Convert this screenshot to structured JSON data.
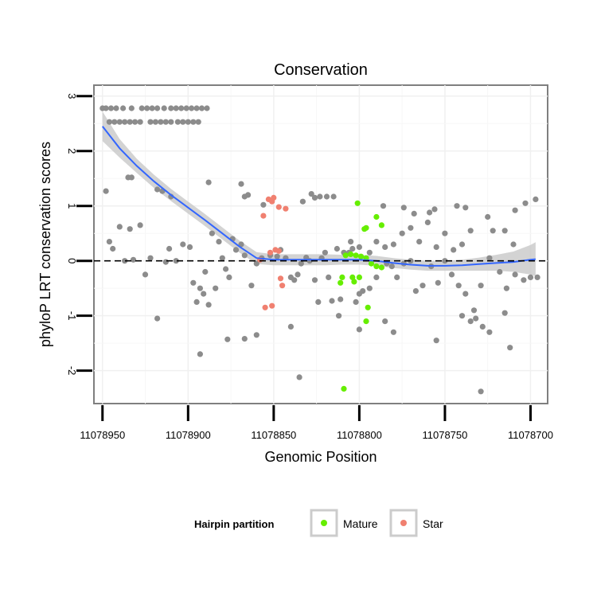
{
  "chart_data": {
    "type": "scatter",
    "title": "Conservation",
    "xlabel": "Genomic Position",
    "ylabel": "phyloP LRT conservation scores",
    "x_reversed": true,
    "xlim": [
      11078955,
      11078690
    ],
    "ylim": [
      -2.6,
      3.2
    ],
    "x_ticks": [
      11078950,
      11078900,
      11078850,
      11078800,
      11078750,
      11078700
    ],
    "x_tick_labels": [
      "11078950",
      "11078900",
      "11078850",
      "11078800",
      "11078750",
      "11078700"
    ],
    "y_ticks": [
      -2,
      -1,
      0,
      1,
      2,
      3
    ],
    "y_tick_labels": [
      "-2",
      "-1",
      "0",
      "1",
      "2",
      "3"
    ],
    "reference_line": {
      "y": 0,
      "style": "dashed"
    },
    "legend": {
      "title": "Hairpin partition",
      "position": "bottom",
      "entries": [
        {
          "label": "Mature",
          "color": "#66ee00"
        },
        {
          "label": "Star",
          "color": "#f08070"
        }
      ]
    },
    "colors": {
      "other": "#8c8c8c",
      "mature": "#66ee00",
      "star": "#f08070",
      "smooth_line": "#3366ff",
      "ribbon": "#c8c8c8"
    },
    "series": [
      {
        "name": "Other",
        "points": [
          [
            11078950,
            2.78
          ],
          [
            11078948,
            2.78
          ],
          [
            11078945,
            2.78
          ],
          [
            11078942,
            2.78
          ],
          [
            11078938,
            2.78
          ],
          [
            11078933,
            2.78
          ],
          [
            11078927,
            2.78
          ],
          [
            11078924,
            2.78
          ],
          [
            11078921,
            2.78
          ],
          [
            11078918,
            2.78
          ],
          [
            11078914,
            2.78
          ],
          [
            11078910,
            2.78
          ],
          [
            11078907,
            2.78
          ],
          [
            11078904,
            2.78
          ],
          [
            11078901,
            2.78
          ],
          [
            11078898,
            2.78
          ],
          [
            11078895,
            2.78
          ],
          [
            11078892,
            2.78
          ],
          [
            11078889,
            2.78
          ],
          [
            11078946,
            2.53
          ],
          [
            11078943,
            2.53
          ],
          [
            11078940,
            2.53
          ],
          [
            11078937,
            2.53
          ],
          [
            11078934,
            2.53
          ],
          [
            11078931,
            2.53
          ],
          [
            11078928,
            2.53
          ],
          [
            11078922,
            2.53
          ],
          [
            11078919,
            2.53
          ],
          [
            11078916,
            2.53
          ],
          [
            11078913,
            2.53
          ],
          [
            11078910,
            2.53
          ],
          [
            11078906,
            2.53
          ],
          [
            11078903,
            2.53
          ],
          [
            11078900,
            2.53
          ],
          [
            11078897,
            2.53
          ],
          [
            11078894,
            2.53
          ],
          [
            11078948,
            1.27
          ],
          [
            11078935,
            1.52
          ],
          [
            11078933,
            1.52
          ],
          [
            11078918,
            1.3
          ],
          [
            11078915,
            1.27
          ],
          [
            11078910,
            1.17
          ],
          [
            11078888,
            1.43
          ],
          [
            11078869,
            1.4
          ],
          [
            11078867,
            1.17
          ],
          [
            11078865,
            1.2
          ],
          [
            11078856,
            1.02
          ],
          [
            11078833,
            1.08
          ],
          [
            11078828,
            1.22
          ],
          [
            11078826,
            1.15
          ],
          [
            11078823,
            1.17
          ],
          [
            11078819,
            1.17
          ],
          [
            11078815,
            1.17
          ],
          [
            11078786,
            1.0
          ],
          [
            11078774,
            0.97
          ],
          [
            11078768,
            0.86
          ],
          [
            11078759,
            0.88
          ],
          [
            11078756,
            0.94
          ],
          [
            11078743,
            1.0
          ],
          [
            11078738,
            0.97
          ],
          [
            11078725,
            0.8
          ],
          [
            11078709,
            0.92
          ],
          [
            11078703,
            1.05
          ],
          [
            11078697,
            1.12
          ],
          [
            11078946,
            0.35
          ],
          [
            11078944,
            0.22
          ],
          [
            11078940,
            0.62
          ],
          [
            11078937,
            0.0
          ],
          [
            11078934,
            0.58
          ],
          [
            11078932,
            0.02
          ],
          [
            11078928,
            0.65
          ],
          [
            11078925,
            -0.25
          ],
          [
            11078922,
            0.05
          ],
          [
            11078918,
            -1.05
          ],
          [
            11078913,
            -0.02
          ],
          [
            11078911,
            0.22
          ],
          [
            11078907,
            0.0
          ],
          [
            11078903,
            0.3
          ],
          [
            11078899,
            0.25
          ],
          [
            11078897,
            -0.4
          ],
          [
            11078895,
            -0.75
          ],
          [
            11078893,
            -0.5
          ],
          [
            11078891,
            -0.6
          ],
          [
            11078890,
            -0.2
          ],
          [
            11078888,
            -0.8
          ],
          [
            11078886,
            0.5
          ],
          [
            11078884,
            -0.5
          ],
          [
            11078882,
            0.35
          ],
          [
            11078880,
            0.05
          ],
          [
            11078878,
            -0.15
          ],
          [
            11078876,
            -0.3
          ],
          [
            11078874,
            0.4
          ],
          [
            11078872,
            0.2
          ],
          [
            11078869,
            0.3
          ],
          [
            11078867,
            0.1
          ],
          [
            11078863,
            -0.45
          ],
          [
            11078860,
            -0.05
          ],
          [
            11078857,
            0.05
          ],
          [
            11078852,
            0.1
          ],
          [
            11078848,
            0.08
          ],
          [
            11078846,
            0.2
          ],
          [
            11078843,
            0.05
          ],
          [
            11078840,
            -0.3
          ],
          [
            11078838,
            -0.35
          ],
          [
            11078836,
            -0.25
          ],
          [
            11078834,
            -0.05
          ],
          [
            11078831,
            0.06
          ],
          [
            11078829,
            0.0
          ],
          [
            11078826,
            -0.35
          ],
          [
            11078824,
            -0.75
          ],
          [
            11078822,
            0.05
          ],
          [
            11078820,
            0.15
          ],
          [
            11078818,
            -0.3
          ],
          [
            11078816,
            -0.73
          ],
          [
            11078813,
            0.22
          ],
          [
            11078811,
            -0.7
          ],
          [
            11078809,
            0.15
          ],
          [
            11078806,
            0.15
          ],
          [
            11078804,
            0.22
          ],
          [
            11078802,
            -0.75
          ],
          [
            11078800,
            -0.6
          ],
          [
            11078798,
            -0.55
          ],
          [
            11078794,
            -0.5
          ],
          [
            11078790,
            -0.3
          ],
          [
            11078784,
            -0.05
          ],
          [
            11078781,
            -0.1
          ],
          [
            11078778,
            -0.3
          ],
          [
            11078774,
            -0.05
          ],
          [
            11078770,
            0.0
          ],
          [
            11078767,
            -0.55
          ],
          [
            11078763,
            -0.45
          ],
          [
            11078758,
            -0.1
          ],
          [
            11078754,
            -0.4
          ],
          [
            11078750,
            0.0
          ],
          [
            11078746,
            -0.25
          ],
          [
            11078742,
            -0.45
          ],
          [
            11078738,
            -0.6
          ],
          [
            11078733,
            -0.9
          ],
          [
            11078729,
            -0.45
          ],
          [
            11078724,
            0.05
          ],
          [
            11078718,
            -0.2
          ],
          [
            11078714,
            -0.5
          ],
          [
            11078709,
            -0.25
          ],
          [
            11078704,
            -0.35
          ],
          [
            11078700,
            -0.3
          ],
          [
            11078696,
            -0.3
          ],
          [
            11078710,
            0.3
          ],
          [
            11078715,
            0.55
          ],
          [
            11078722,
            0.55
          ],
          [
            11078735,
            0.55
          ],
          [
            11078740,
            0.3
          ],
          [
            11078745,
            0.2
          ],
          [
            11078750,
            0.5
          ],
          [
            11078755,
            0.25
          ],
          [
            11078760,
            0.7
          ],
          [
            11078765,
            0.35
          ],
          [
            11078770,
            0.6
          ],
          [
            11078775,
            0.5
          ],
          [
            11078780,
            0.3
          ],
          [
            11078785,
            0.25
          ],
          [
            11078790,
            0.35
          ],
          [
            11078794,
            0.15
          ],
          [
            11078800,
            0.25
          ],
          [
            11078805,
            0.35
          ],
          [
            11078893,
            -1.7
          ],
          [
            11078877,
            -1.43
          ],
          [
            11078867,
            -1.42
          ],
          [
            11078860,
            -1.35
          ],
          [
            11078840,
            -1.2
          ],
          [
            11078835,
            -2.12
          ],
          [
            11078812,
            -1.0
          ],
          [
            11078800,
            -1.25
          ],
          [
            11078785,
            -1.1
          ],
          [
            11078780,
            -1.3
          ],
          [
            11078755,
            -1.45
          ],
          [
            11078740,
            -1.0
          ],
          [
            11078735,
            -1.1
          ],
          [
            11078732,
            -1.05
          ],
          [
            11078728,
            -1.2
          ],
          [
            11078724,
            -1.3
          ],
          [
            11078715,
            -0.95
          ],
          [
            11078712,
            -1.58
          ],
          [
            11078729,
            -2.38
          ]
        ]
      },
      {
        "name": "Mature",
        "points": [
          [
            11078801,
            1.05
          ],
          [
            11078790,
            0.8
          ],
          [
            11078787,
            0.65
          ],
          [
            11078796,
            0.6
          ],
          [
            11078797,
            0.58
          ],
          [
            11078808,
            0.1
          ],
          [
            11078805,
            0.12
          ],
          [
            11078802,
            0.1
          ],
          [
            11078799,
            0.08
          ],
          [
            11078796,
            0.05
          ],
          [
            11078793,
            -0.05
          ],
          [
            11078790,
            -0.1
          ],
          [
            11078787,
            -0.12
          ],
          [
            11078810,
            -0.3
          ],
          [
            11078804,
            -0.3
          ],
          [
            11078803,
            -0.38
          ],
          [
            11078800,
            -0.3
          ],
          [
            11078795,
            -0.85
          ],
          [
            11078796,
            -1.1
          ],
          [
            11078809,
            -2.33
          ],
          [
            11078811,
            -0.4
          ]
        ]
      },
      {
        "name": "Star",
        "points": [
          [
            11078853,
            1.12
          ],
          [
            11078851,
            1.08
          ],
          [
            11078850,
            1.15
          ],
          [
            11078847,
            0.98
          ],
          [
            11078843,
            0.95
          ],
          [
            11078856,
            0.82
          ],
          [
            11078858,
            0.02
          ],
          [
            11078852,
            0.15
          ],
          [
            11078849,
            0.2
          ],
          [
            11078847,
            0.18
          ],
          [
            11078846,
            -0.32
          ],
          [
            11078845,
            -0.45
          ],
          [
            11078855,
            -0.85
          ],
          [
            11078851,
            -0.82
          ]
        ]
      }
    ],
    "smooth_fit": {
      "x": [
        11078950,
        11078940,
        11078930,
        11078920,
        11078910,
        11078900,
        11078890,
        11078880,
        11078870,
        11078860,
        11078850,
        11078840,
        11078830,
        11078820,
        11078810,
        11078800,
        11078790,
        11078780,
        11078770,
        11078760,
        11078750,
        11078740,
        11078730,
        11078720,
        11078710,
        11078700,
        11078697
      ],
      "y": [
        2.45,
        2.05,
        1.73,
        1.45,
        1.2,
        0.97,
        0.74,
        0.5,
        0.26,
        0.05,
        0.02,
        0.02,
        0.02,
        0.02,
        0.02,
        0.02,
        0.0,
        -0.04,
        -0.07,
        -0.09,
        -0.09,
        -0.08,
        -0.06,
        -0.04,
        -0.02,
        0.02,
        0.03
      ],
      "lower": [
        2.18,
        1.88,
        1.6,
        1.33,
        1.09,
        0.86,
        0.63,
        0.39,
        0.15,
        -0.06,
        -0.08,
        -0.08,
        -0.08,
        -0.08,
        -0.07,
        -0.07,
        -0.09,
        -0.13,
        -0.16,
        -0.18,
        -0.18,
        -0.18,
        -0.18,
        -0.18,
        -0.2,
        -0.25,
        -0.28
      ],
      "upper": [
        2.72,
        2.22,
        1.86,
        1.57,
        1.31,
        1.08,
        0.85,
        0.61,
        0.37,
        0.16,
        0.12,
        0.12,
        0.12,
        0.12,
        0.11,
        0.11,
        0.09,
        0.05,
        0.02,
        0.0,
        0.0,
        0.02,
        0.06,
        0.11,
        0.17,
        0.29,
        0.34
      ]
    }
  }
}
